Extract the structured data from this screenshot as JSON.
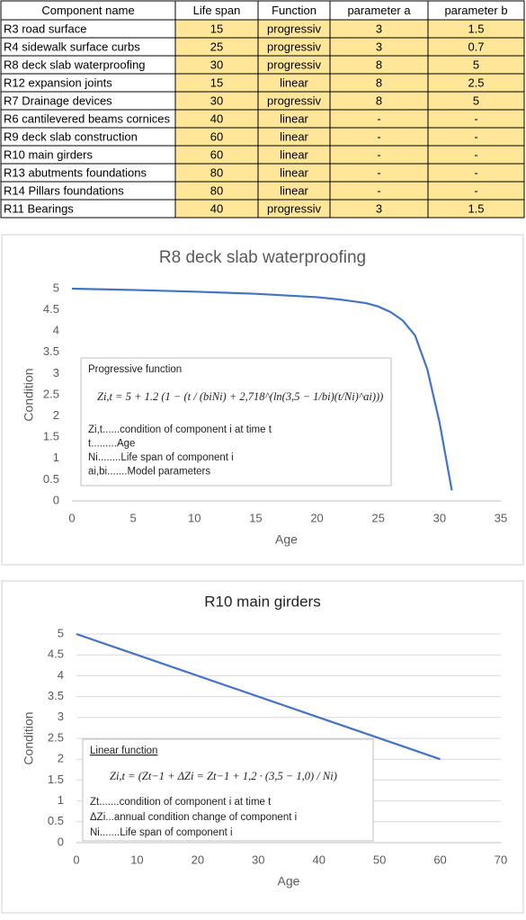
{
  "table": {
    "header": [
      "Component name",
      "Life span",
      "Function",
      "parameter a",
      "parameter b"
    ],
    "rows": [
      [
        "R3 road surface",
        "15",
        "progressiv",
        "3",
        "1.5"
      ],
      [
        "R4 sidewalk surface curbs",
        "25",
        "progressiv",
        "3",
        "0.7"
      ],
      [
        "R8 deck slab waterproofing",
        "30",
        "progressiv",
        "8",
        "5"
      ],
      [
        "R12 expansion joints",
        "15",
        "linear",
        "8",
        "2.5"
      ],
      [
        "R7 Drainage devices",
        "30",
        "progressiv",
        "8",
        "5"
      ],
      [
        "R6 cantilevered beams cornices",
        "40",
        "linear",
        "-",
        "-"
      ],
      [
        "R9 deck slab construction",
        "60",
        "linear",
        "-",
        "-"
      ],
      [
        "R10 main girders",
        "60",
        "linear",
        "-",
        "-"
      ],
      [
        "R13 abutments foundations",
        "80",
        "linear",
        "-",
        "-"
      ],
      [
        "R14 Pillars foundations",
        "80",
        "linear",
        "-",
        "-"
      ],
      [
        "R11 Bearings",
        "40",
        "progressiv",
        "3",
        "1.5"
      ]
    ]
  },
  "chart_data": [
    {
      "type": "line",
      "title": "R8 deck slab waterproofing",
      "x_label": "Age",
      "y_label": "Condition",
      "x": [
        0,
        5,
        10,
        15,
        20,
        22,
        24,
        25,
        26,
        27,
        28,
        29,
        30,
        31
      ],
      "series": [
        {
          "color": "#4472c4",
          "values": [
            5,
            4.97,
            4.93,
            4.88,
            4.8,
            4.74,
            4.66,
            4.58,
            4.45,
            4.25,
            3.9,
            3.1,
            1.85,
            0.25
          ]
        }
      ],
      "xlim": [
        0,
        35
      ],
      "xticks": [
        0,
        5,
        10,
        15,
        20,
        25,
        30,
        35
      ],
      "ylim": [
        0,
        5
      ],
      "yticks": [
        0,
        0.5,
        1,
        1.5,
        2,
        2.5,
        3,
        3.5,
        4,
        4.5,
        5
      ],
      "grid": false,
      "annotation": {
        "title": "Progressive function",
        "formula": "Zi,t = 5 + 1.2 (1 − (t / (biNi) + 2,718^(ln(3,5 − 1/bi)(t/Ni)^ai)))",
        "notes": [
          "Zi,t......condition of component i at time t",
          "t.........Age",
          "Ni........Life span of component i",
          "ai,bi.......Model parameters"
        ]
      }
    },
    {
      "type": "line",
      "title": "R10 main girders",
      "x_label": "Age",
      "y_label": "Condition",
      "x": [
        0,
        60
      ],
      "series": [
        {
          "color": "#4472c4",
          "values": [
            5,
            2
          ]
        }
      ],
      "xlim": [
        0,
        70
      ],
      "xticks": [
        0,
        10,
        20,
        30,
        40,
        50,
        60,
        70
      ],
      "ylim": [
        0,
        5
      ],
      "yticks": [
        0,
        0.5,
        1,
        1.5,
        2,
        2.5,
        3,
        3.5,
        4,
        4.5,
        5
      ],
      "grid": true,
      "annotation": {
        "title": "Linear function",
        "formula": "Zi,t = (Zt−1 + ΔZi = Zt−1 + 1,2 · (3,5 − 1,0) / Ni)",
        "notes": [
          "Zt.......condition of component i at time t",
          "ΔZi...annual condition change of component i",
          "Ni.......Life span of component i"
        ]
      }
    }
  ]
}
